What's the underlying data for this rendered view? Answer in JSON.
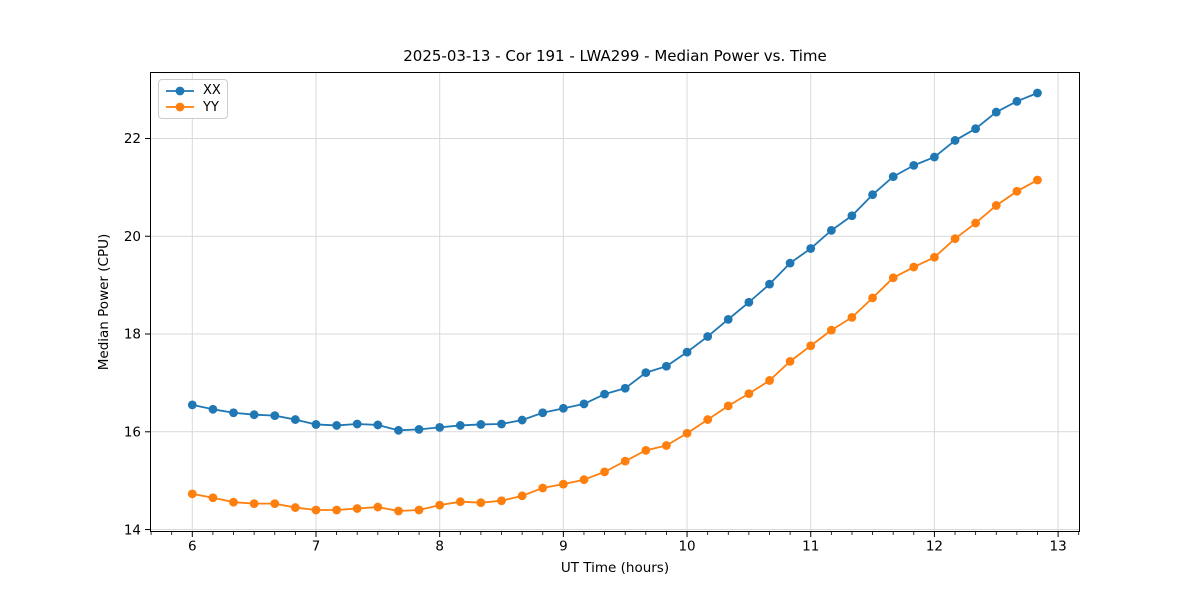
{
  "chart_data": {
    "type": "line",
    "title": "2025-03-13 - Cor 191 - LWA299 - Median Power vs. Time",
    "xlabel": "UT Time (hours)",
    "ylabel": "Median Power (CPU)",
    "xlim": [
      5.658,
      13.177
    ],
    "ylim": [
      13.95,
      23.36
    ],
    "xticks": [
      6,
      7,
      8,
      9,
      10,
      11,
      12,
      13
    ],
    "yticks": [
      14,
      16,
      18,
      20,
      22
    ],
    "minor_tick_step_hours": 0.1667,
    "grid": true,
    "legend_position": "upper left",
    "colors": {
      "grid": "#d9d9d9",
      "spine": "#000000",
      "text": "#000000"
    },
    "x": [
      6.0,
      6.167,
      6.333,
      6.5,
      6.667,
      6.833,
      7.0,
      7.167,
      7.333,
      7.5,
      7.667,
      7.833,
      8.0,
      8.167,
      8.333,
      8.5,
      8.667,
      8.833,
      9.0,
      9.167,
      9.333,
      9.5,
      9.667,
      9.833,
      10.0,
      10.167,
      10.333,
      10.5,
      10.667,
      10.833,
      11.0,
      11.167,
      11.333,
      11.5,
      11.667,
      11.833,
      12.0,
      12.167,
      12.333,
      12.5,
      12.667,
      12.833
    ],
    "series": [
      {
        "name": "XX",
        "color": "#1f77b4",
        "marker": "circle",
        "values": [
          16.55,
          16.46,
          16.39,
          16.35,
          16.33,
          16.25,
          16.15,
          16.13,
          16.16,
          16.14,
          16.03,
          16.05,
          16.09,
          16.13,
          16.15,
          16.16,
          16.24,
          16.39,
          16.48,
          16.57,
          16.77,
          16.89,
          17.21,
          17.34,
          17.63,
          17.95,
          18.3,
          18.65,
          19.02,
          19.45,
          19.75,
          20.12,
          20.42,
          20.85,
          21.22,
          21.45,
          21.62,
          21.96,
          22.2,
          22.54,
          22.76,
          22.93
        ]
      },
      {
        "name": "YY",
        "color": "#ff7f0e",
        "marker": "circle",
        "values": [
          14.73,
          14.65,
          14.56,
          14.53,
          14.53,
          14.45,
          14.4,
          14.4,
          14.43,
          14.46,
          14.38,
          14.4,
          14.5,
          14.57,
          14.55,
          14.59,
          14.69,
          14.85,
          14.93,
          15.02,
          15.18,
          15.4,
          15.62,
          15.72,
          15.97,
          16.25,
          16.53,
          16.78,
          17.05,
          17.44,
          17.76,
          18.08,
          18.34,
          18.74,
          19.15,
          19.37,
          19.57,
          19.95,
          20.27,
          20.63,
          20.92,
          21.15
        ]
      }
    ]
  }
}
